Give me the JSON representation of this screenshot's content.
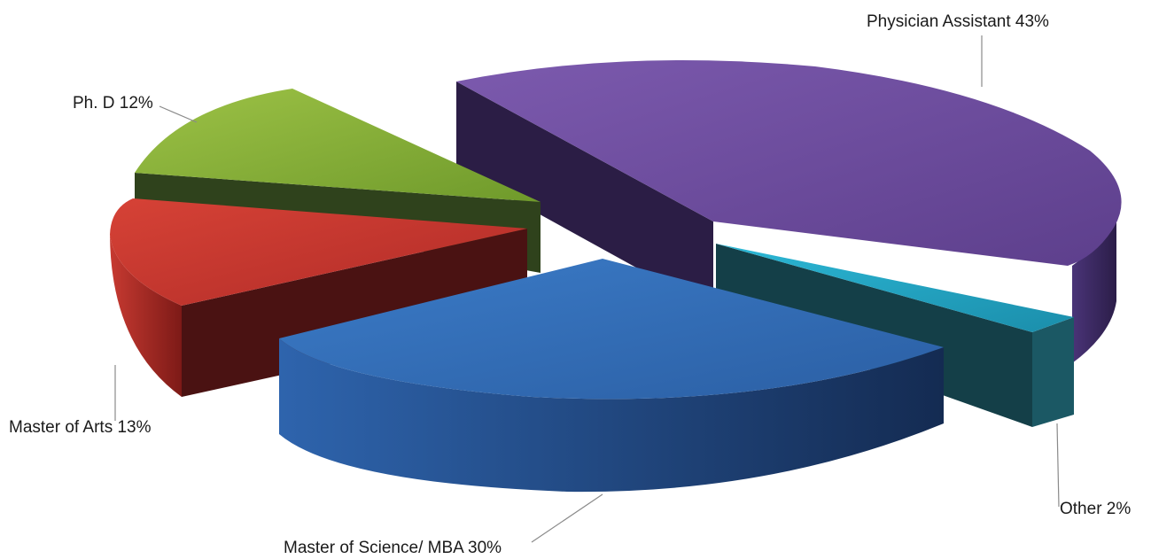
{
  "chart_data": {
    "type": "pie",
    "title": "",
    "slices": [
      {
        "name": "Physician Assistant",
        "value": 43,
        "label": "Physician Assistant 43%",
        "color": "#6d4c9e"
      },
      {
        "name": "Other",
        "value": 2,
        "label": "Other 2%",
        "color": "#22a7c6"
      },
      {
        "name": "Master of Science/ MBA",
        "value": 30,
        "label": "Master of Science/ MBA 30%",
        "color": "#2e69b3"
      },
      {
        "name": "Master of Arts",
        "value": 13,
        "label": "Master of Arts 13%",
        "color": "#c8332e"
      },
      {
        "name": "Ph. D",
        "value": 12,
        "label": "Ph. D 12%",
        "color": "#8bb43a"
      }
    ],
    "legend": "none",
    "style": "3d-exploded"
  }
}
